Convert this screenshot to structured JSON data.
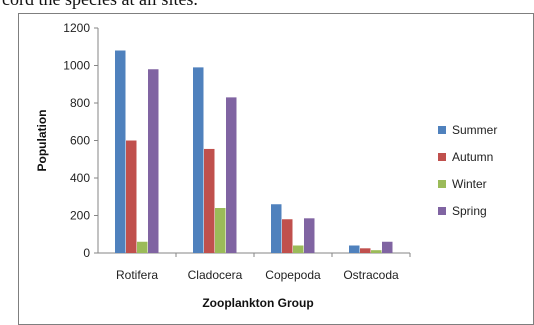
{
  "page": {
    "top_text": "cord the species at all sites."
  },
  "chart_data": {
    "type": "bar",
    "title": "",
    "xlabel": "Zooplankton Group",
    "ylabel": "Population",
    "categories": [
      "Rotifera",
      "Cladocera",
      "Copepoda",
      "Ostracoda"
    ],
    "ylim": [
      0,
      1200
    ],
    "yticks": [
      0,
      200,
      400,
      600,
      800,
      1000,
      1200
    ],
    "grid": false,
    "legend_position": "right",
    "series": [
      {
        "name": "Summer",
        "color": "#4f81bd",
        "values": [
          1080,
          990,
          260,
          40
        ]
      },
      {
        "name": "Autumn",
        "color": "#c0504d",
        "values": [
          600,
          555,
          180,
          25
        ]
      },
      {
        "name": "Winter",
        "color": "#9bbb59",
        "values": [
          60,
          240,
          40,
          15
        ]
      },
      {
        "name": "Spring",
        "color": "#8064a2",
        "values": [
          980,
          830,
          185,
          60
        ]
      }
    ]
  }
}
